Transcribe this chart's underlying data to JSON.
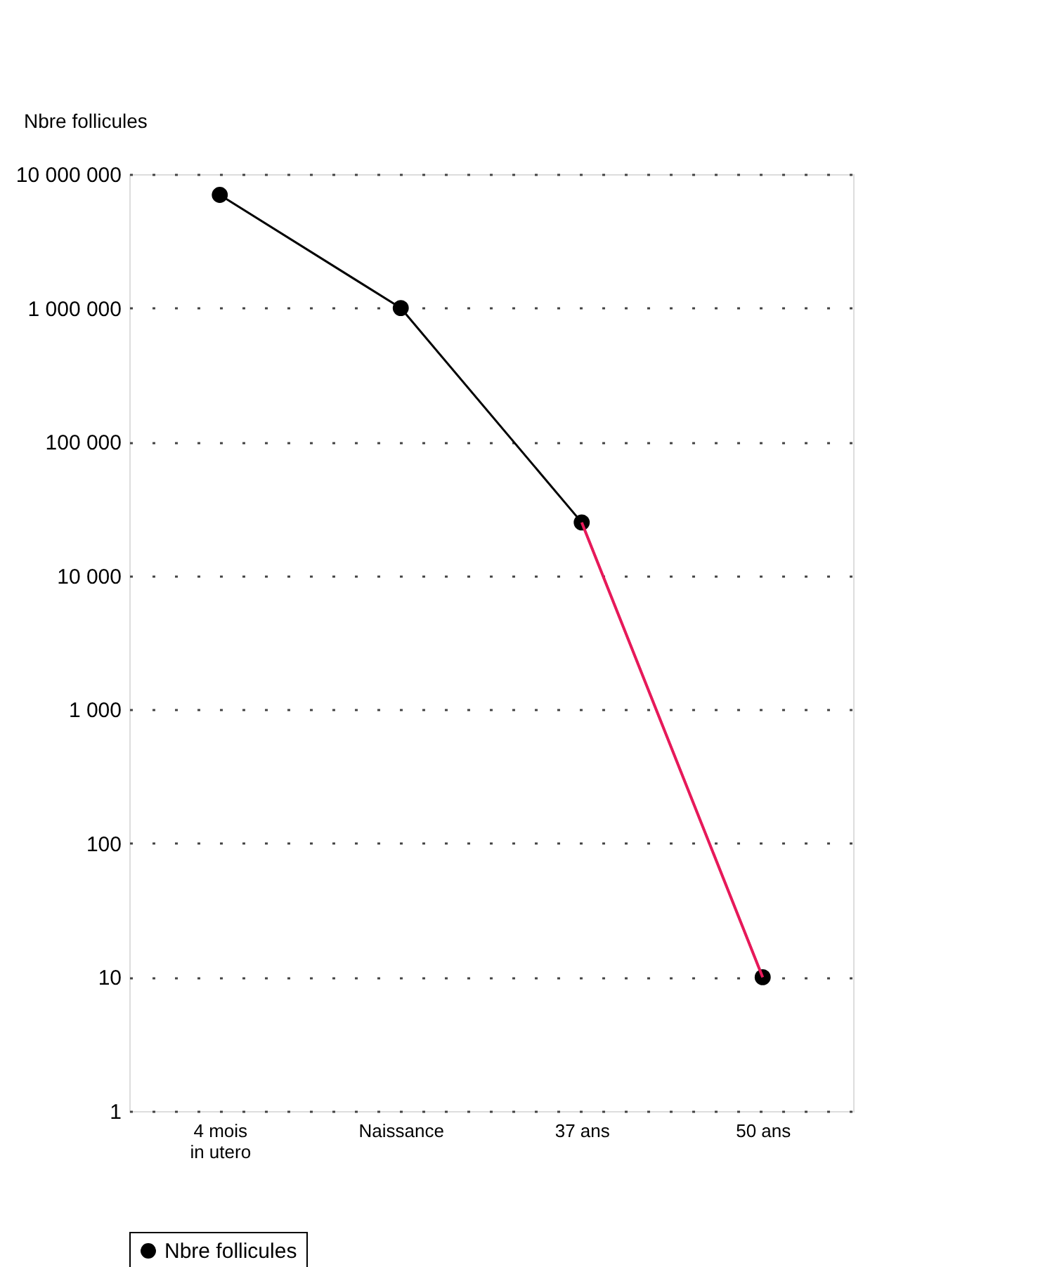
{
  "chart_data": {
    "type": "line",
    "ylabel": "Nbre follicules",
    "categories": [
      "4 mois\nin utero",
      "Naissance",
      "37 ans",
      "50 ans"
    ],
    "ylim": [
      1,
      10000000
    ],
    "log": true,
    "yticks": [
      1,
      10,
      100,
      {
        "value": 1000,
        "label": "1 000"
      },
      {
        "value": 10000,
        "label": "10 000"
      },
      {
        "value": 100000,
        "label": "100 000"
      },
      {
        "value": 1000000,
        "label": "1 000 000"
      },
      {
        "value": 10000000,
        "label": "10 000 000"
      }
    ],
    "series": [
      {
        "name": "Nbre follicules",
        "color": "#000000",
        "marker": "circle",
        "values": [
          7000000,
          1000000,
          25000,
          10
        ]
      },
      {
        "color": "#e8195a",
        "marker": "none",
        "values": [
          null,
          null,
          25000,
          10
        ]
      }
    ],
    "grid": "y",
    "line_style": "solid",
    "legend": "bottom"
  }
}
